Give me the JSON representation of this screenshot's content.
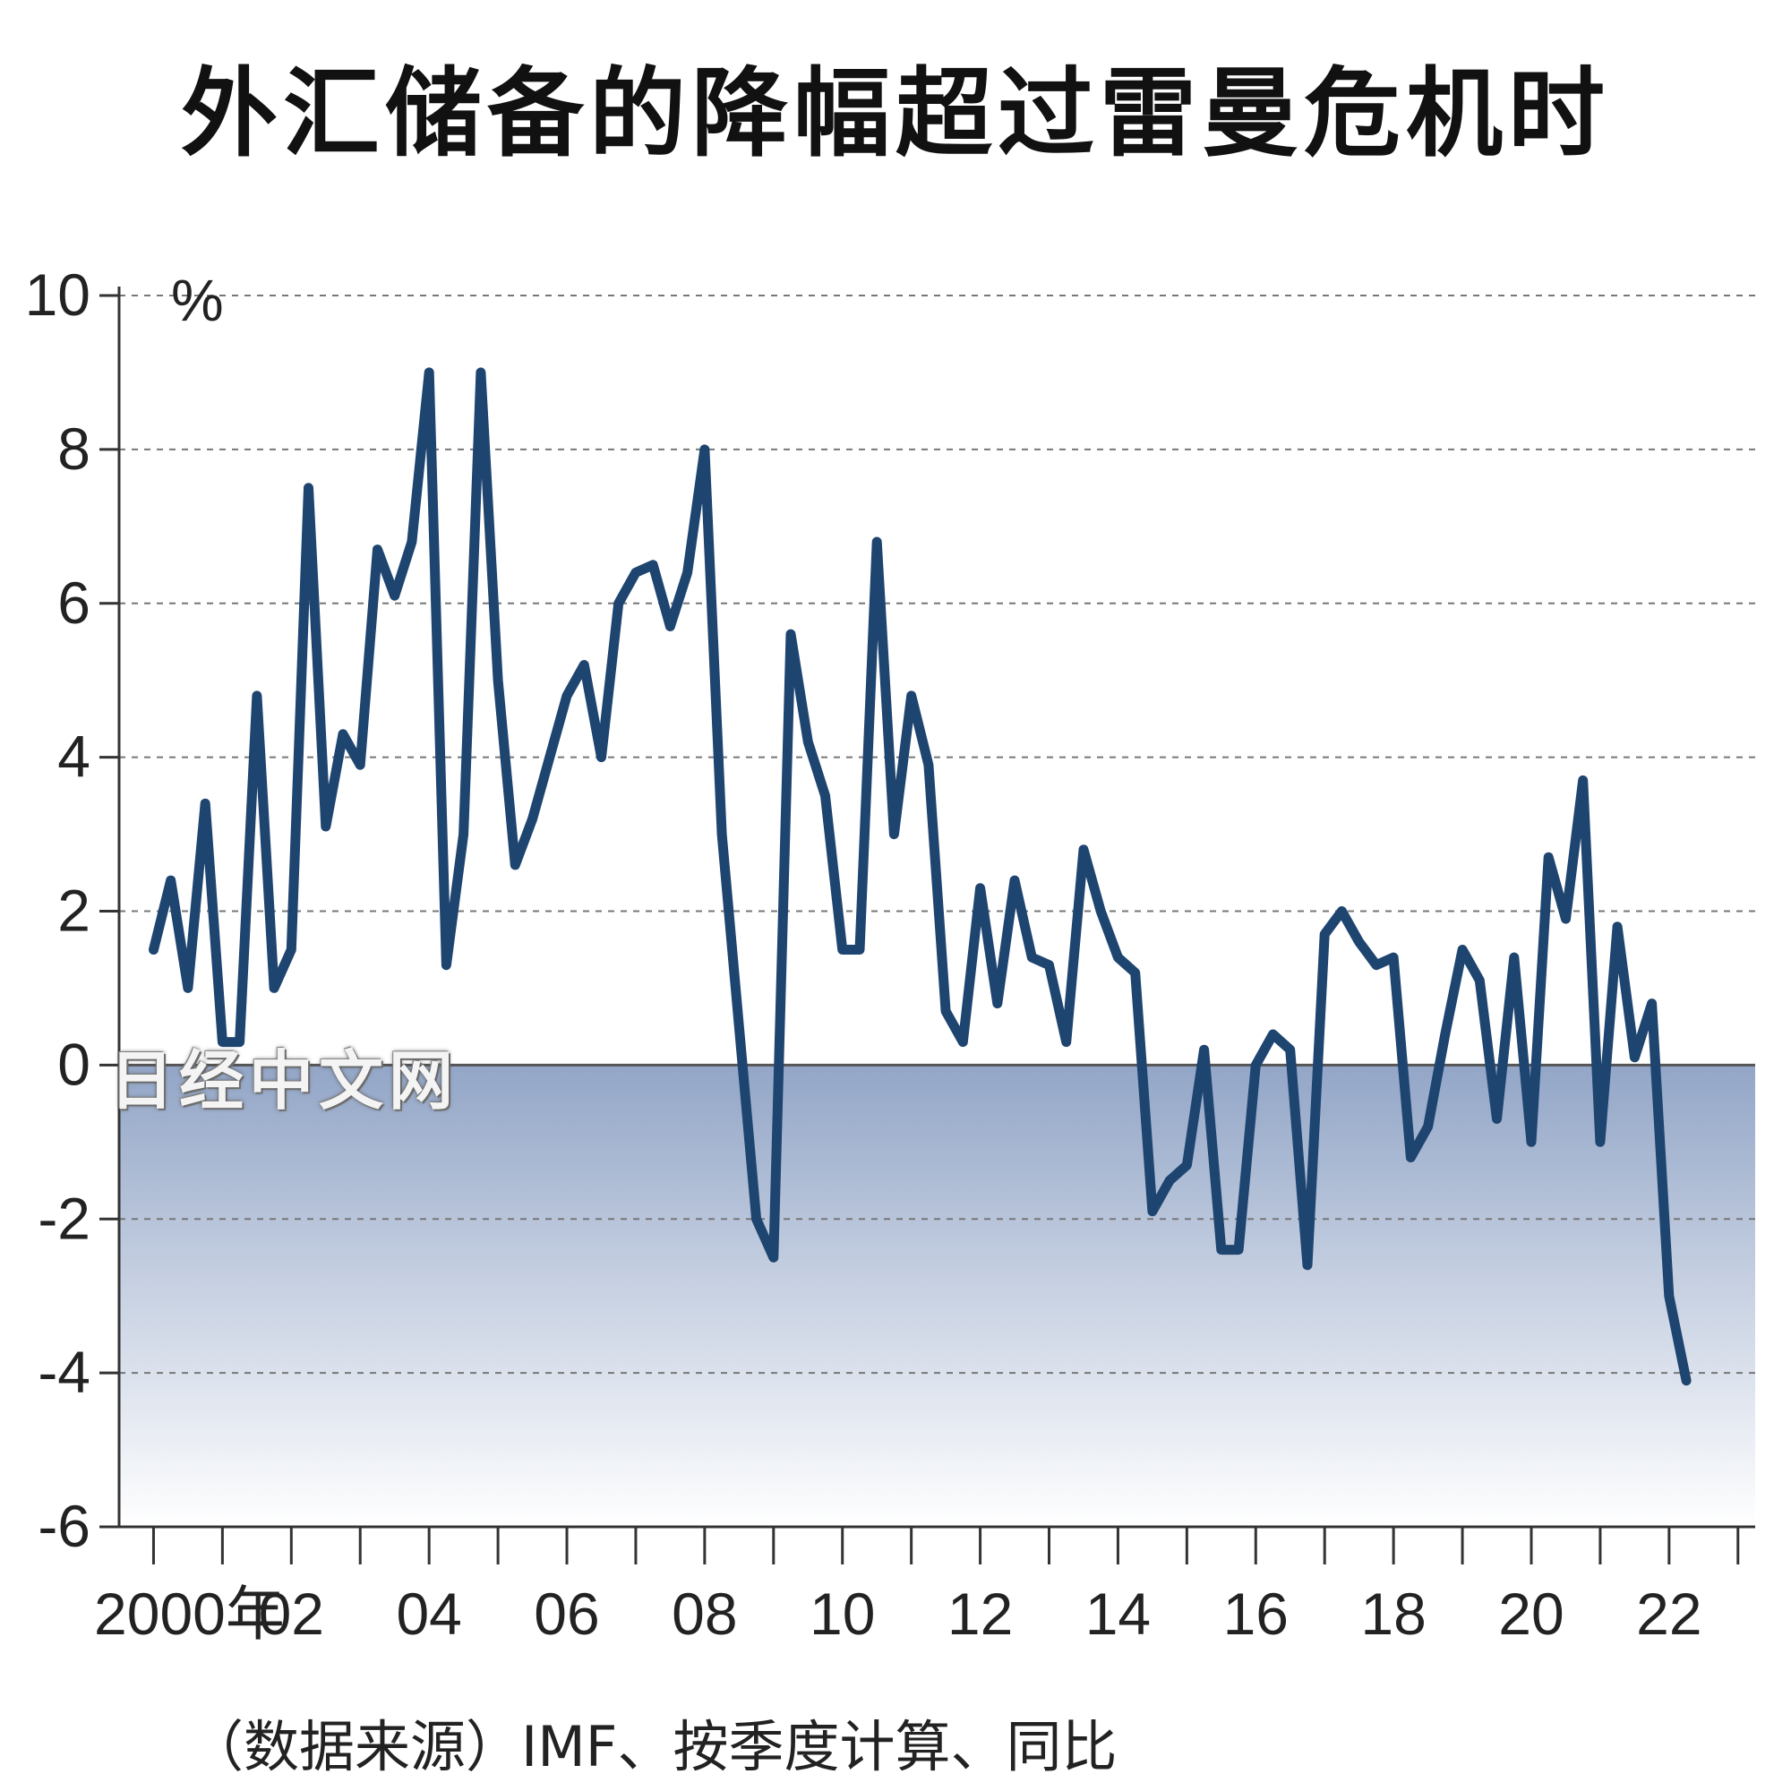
{
  "title": "外汇储备的降幅超过雷曼危机时",
  "source_note": "（数据来源）IMF、按季度计算、同比",
  "watermark": "日经中文网",
  "colors": {
    "line": "#1e4470",
    "grid": "#777777",
    "axis": "#333333",
    "negative_fill_top": "#93a6c7",
    "negative_fill_bottom": "#ffffff"
  },
  "chart_data": {
    "type": "line",
    "title": "外汇储备的降幅超过雷曼危机时",
    "ylabel": "%",
    "ylim": [
      -6,
      10
    ],
    "yticks": [
      10,
      8,
      6,
      4,
      2,
      0,
      -2,
      -4,
      -6
    ],
    "xlim": [
      1999.5,
      2023.25
    ],
    "xticks": [
      {
        "value": 2000,
        "label": "2000年"
      },
      {
        "value": 2002,
        "label": "02"
      },
      {
        "value": 2004,
        "label": "04"
      },
      {
        "value": 2006,
        "label": "06"
      },
      {
        "value": 2008,
        "label": "08"
      },
      {
        "value": 2010,
        "label": "10"
      },
      {
        "value": 2012,
        "label": "12"
      },
      {
        "value": 2014,
        "label": "14"
      },
      {
        "value": 2016,
        "label": "16"
      },
      {
        "value": 2018,
        "label": "18"
      },
      {
        "value": 2020,
        "label": "20"
      },
      {
        "value": 2022,
        "label": "22"
      }
    ],
    "grid": true,
    "series": [
      {
        "x": [
          2000.0,
          2000.25,
          2000.5,
          2000.75,
          2001.0,
          2001.25,
          2001.5,
          2001.75,
          2002.0,
          2002.25,
          2002.5,
          2002.75,
          2003.0,
          2003.25,
          2003.5,
          2003.75,
          2004.0,
          2004.25,
          2004.5,
          2004.75,
          2005.0,
          2005.25,
          2005.5,
          2005.75,
          2006.0,
          2006.25,
          2006.5,
          2006.75,
          2007.0,
          2007.25,
          2007.5,
          2007.75,
          2008.0,
          2008.25,
          2008.5,
          2008.75,
          2009.0,
          2009.25,
          2009.5,
          2009.75,
          2010.0,
          2010.25,
          2010.5,
          2010.75,
          2011.0,
          2011.25,
          2011.5,
          2011.75,
          2012.0,
          2012.25,
          2012.5,
          2012.75,
          2013.0,
          2013.25,
          2013.5,
          2013.75,
          2014.0,
          2014.25,
          2014.5,
          2014.75,
          2015.0,
          2015.25,
          2015.5,
          2015.75,
          2016.0,
          2016.25,
          2016.5,
          2016.75,
          2017.0,
          2017.25,
          2017.5,
          2017.75,
          2018.0,
          2018.25,
          2018.5,
          2018.75,
          2019.0,
          2019.25,
          2019.5,
          2019.75,
          2020.0,
          2020.25,
          2020.5,
          2020.75,
          2021.0,
          2021.25,
          2021.5,
          2021.75,
          2022.0,
          2022.25
        ],
        "values": [
          1.5,
          2.4,
          1.0,
          3.4,
          0.3,
          0.3,
          4.8,
          1.0,
          1.5,
          7.5,
          3.1,
          4.3,
          3.9,
          6.7,
          6.1,
          6.8,
          9.0,
          1.3,
          3.0,
          9.0,
          5.0,
          2.6,
          3.2,
          4.0,
          4.8,
          5.2,
          4.0,
          6.0,
          6.4,
          6.5,
          5.7,
          6.4,
          8.0,
          3.0,
          0.5,
          -2.0,
          -2.5,
          5.6,
          4.2,
          3.5,
          1.5,
          1.5,
          6.8,
          3.0,
          4.8,
          3.9,
          0.7,
          0.3,
          2.3,
          0.8,
          2.4,
          1.4,
          1.3,
          0.3,
          2.8,
          2.0,
          1.4,
          1.2,
          -1.9,
          -1.5,
          -1.3,
          0.2,
          -2.4,
          -2.4,
          0.0,
          0.4,
          0.2,
          -2.6,
          1.7,
          2.0,
          1.6,
          1.3,
          1.4,
          -1.2,
          -0.8,
          0.4,
          1.5,
          1.1,
          -0.7,
          1.4,
          -1.0,
          2.7,
          1.9,
          3.7,
          -1.0,
          1.8,
          0.1,
          0.8,
          -3.0,
          -4.1
        ]
      }
    ]
  }
}
